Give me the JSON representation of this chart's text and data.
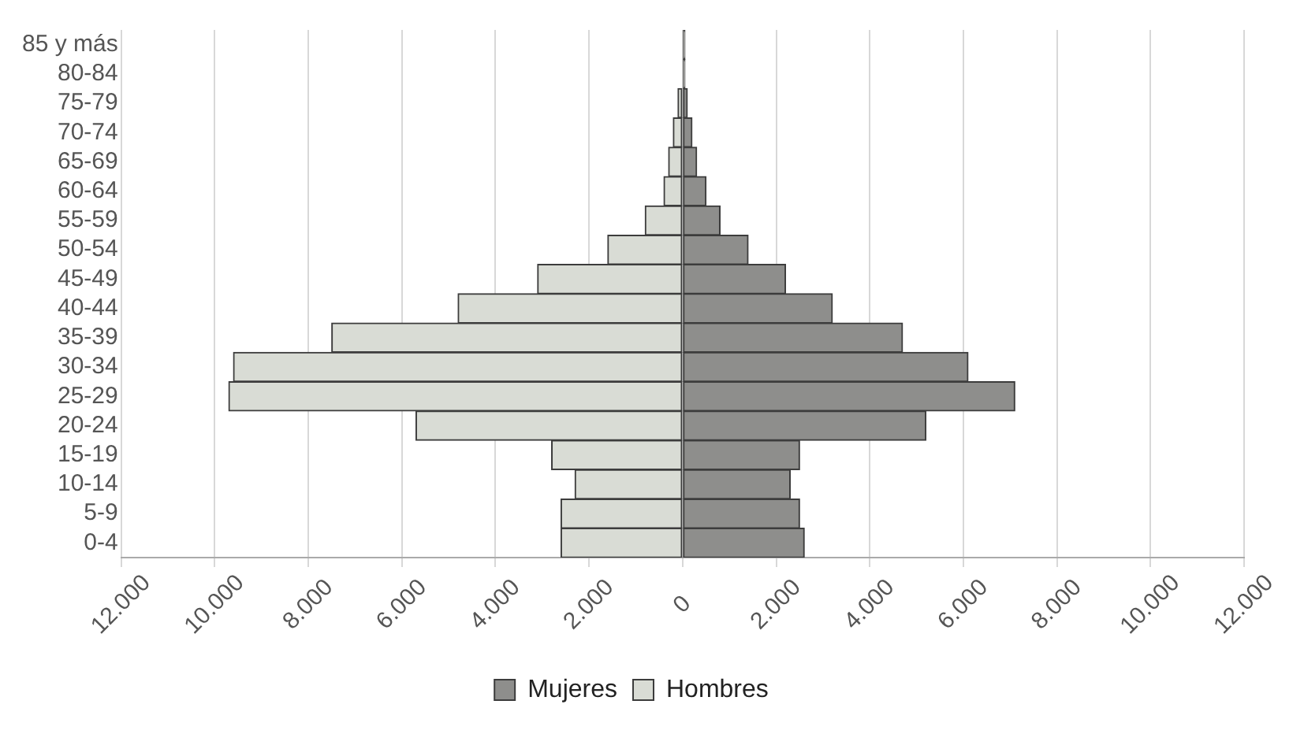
{
  "chart_data": {
    "type": "bar",
    "orientation": "horizontal",
    "stacked": true,
    "categories": [
      "85 y más",
      "80-84",
      "75-79",
      "70-74",
      "65-69",
      "60-64",
      "55-59",
      "50-54",
      "45-49",
      "40-44",
      "35-39",
      "30-34",
      "25-29",
      "20-24",
      "15-19",
      "10-14",
      "5-9",
      "0-4"
    ],
    "series": [
      {
        "name": "Mujeres",
        "color": "#8e8e8c",
        "values": [
          50,
          50,
          100,
          200,
          300,
          500,
          800,
          1400,
          2200,
          3200,
          4700,
          6100,
          7100,
          5200,
          2500,
          2300,
          2500,
          2600
        ]
      },
      {
        "name": "Hombres",
        "color": "#d9dcd5",
        "values": [
          null,
          null,
          -100,
          -200,
          -300,
          -400,
          -800,
          -1600,
          -3100,
          -4800,
          -7500,
          -9600,
          -9700,
          -5700,
          -2800,
          -2300,
          -2600,
          -2600
        ]
      }
    ],
    "xlim": [
      -12000,
      12000
    ],
    "xticks": [
      {
        "value": -12000,
        "label": "12.000"
      },
      {
        "value": -10000,
        "label": "10.000"
      },
      {
        "value": -8000,
        "label": "8.000"
      },
      {
        "value": -6000,
        "label": "6.000"
      },
      {
        "value": -4000,
        "label": "4.000"
      },
      {
        "value": -2000,
        "label": "2.000"
      },
      0,
      {
        "value": 2000,
        "label": "2.000"
      },
      {
        "value": 4000,
        "label": "4.000"
      },
      {
        "value": 6000,
        "label": "6.000"
      },
      {
        "value": 8000,
        "label": "8.000"
      },
      {
        "value": 10000,
        "label": "10.000"
      },
      {
        "value": 12000,
        "label": "12.000"
      }
    ],
    "grid": "x",
    "legend": "bottom"
  }
}
